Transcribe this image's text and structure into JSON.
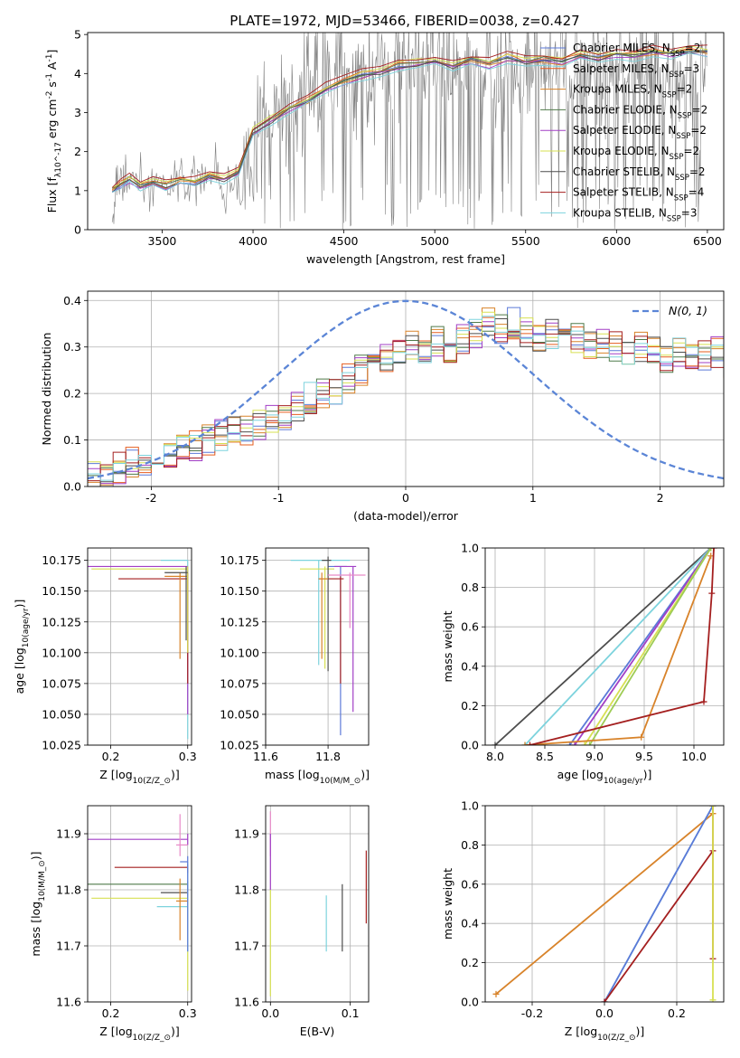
{
  "figure": {
    "title": "PLATE=1972, MJD=53466, FIBERID=0038, z=0.427"
  },
  "colors": {
    "chab_miles": "#5b79d8",
    "salp_miles": "#e65d1e",
    "krou_miles": "#d8832a",
    "chab_elodie": "#4f7a4a",
    "salp_elodie": "#a23fc6",
    "krou_elodie": "#d7e052",
    "chab_stelib": "#4d4d4d",
    "salp_stelib": "#a41f1f",
    "krou_stelib": "#7dd3dd",
    "obs": "#808080",
    "pink": "#e88ac8",
    "olive": "#9ecc55",
    "gauss": "#5b85d6"
  },
  "chart_data": [
    {
      "id": "spectrum",
      "type": "line",
      "xlabel": "wavelength [Angstrom, rest frame]",
      "ylabel": "Flux [f_λ 10^-17 erg cm^-2 s^-1 A^-1]",
      "xlim": [
        3090,
        6590
      ],
      "ylim": [
        0,
        5.05
      ],
      "xticks": [
        3500,
        4000,
        4500,
        5000,
        5500,
        6000,
        6500
      ],
      "yticks": [
        0,
        1,
        2,
        3,
        4,
        5
      ],
      "grid": false,
      "legend_position": "upper-right",
      "observed": {
        "wavelength": [
          3225,
          3250,
          3280,
          3310,
          3350,
          3400,
          3450,
          3500,
          3550,
          3600,
          3650,
          3700,
          3750,
          3800,
          3850,
          3900,
          3950,
          4000,
          4050,
          4100,
          4150,
          4200,
          4250,
          4300,
          4350,
          4400,
          4450,
          4500,
          4550,
          4600,
          4650,
          4700,
          4750,
          4800,
          4850,
          4900,
          4950,
          5000,
          5050,
          5100,
          5150,
          5200,
          5250,
          5300,
          5350,
          5400,
          5450,
          5500,
          5550,
          5600,
          5650,
          5700,
          5750,
          5800,
          5850,
          5900,
          5950,
          6000,
          6050,
          6100,
          6150,
          6200,
          6250,
          6300,
          6350,
          6400,
          6450,
          6500
        ],
        "flux": [
          0.0,
          1.1,
          1.25,
          1.2,
          1.35,
          1.2,
          1.15,
          1.3,
          1.05,
          1.4,
          0.9,
          1.5,
          1.0,
          1.6,
          0.7,
          1.5,
          0.6,
          2.4,
          2.9,
          2.6,
          3.4,
          3.1,
          3.3,
          3.7,
          3.4,
          3.9,
          3.6,
          4.2,
          3.8,
          4.1,
          3.9,
          4.4,
          4.0,
          4.6,
          3.7,
          4.5,
          4.1,
          4.3,
          3.9,
          4.2,
          3.8,
          4.4,
          3.9,
          4.1,
          3.7,
          4.3,
          3.6,
          4.2,
          3.9,
          4.4,
          3.8,
          4.5,
          3.6,
          4.3,
          3.9,
          4.4,
          3.7,
          4.6,
          3.8,
          4.3,
          3.9,
          4.5,
          3.7,
          4.2,
          3.8,
          4.4,
          3.9,
          4.3
        ]
      },
      "model_x": [
        3225,
        3270,
        3320,
        3380,
        3450,
        3520,
        3600,
        3680,
        3760,
        3840,
        3920,
        4000,
        4100,
        4200,
        4300,
        4400,
        4500,
        4600,
        4700,
        4800,
        4900,
        5000,
        5100,
        5200,
        5300,
        5400,
        5500,
        5600,
        5700,
        5800,
        5900,
        6000,
        6100,
        6200,
        6300,
        6400,
        6500
      ],
      "model_base": [
        1.0,
        1.15,
        1.3,
        1.15,
        1.2,
        1.1,
        1.25,
        1.2,
        1.35,
        1.3,
        1.5,
        2.5,
        2.8,
        3.1,
        3.3,
        3.6,
        3.8,
        3.95,
        4.05,
        4.2,
        4.25,
        4.3,
        4.2,
        4.35,
        4.25,
        4.4,
        4.3,
        4.35,
        4.3,
        4.45,
        4.4,
        4.5,
        4.45,
        4.55,
        4.5,
        4.6,
        4.55
      ],
      "series": [
        {
          "name": "Chabrier MILES, N_SSP=2",
          "color_key": "chab_miles",
          "offset": 0.0
        },
        {
          "name": "Salpeter MILES, N_SSP=3",
          "color_key": "salp_miles",
          "offset": 0.05
        },
        {
          "name": "Kroupa MILES, N_SSP=2",
          "color_key": "krou_miles",
          "offset": -0.03
        },
        {
          "name": "Chabrier ELODIE, N_SSP=2",
          "color_key": "chab_elodie",
          "offset": 0.02
        },
        {
          "name": "Salpeter ELODIE, N_SSP=2",
          "color_key": "salp_elodie",
          "offset": -0.06
        },
        {
          "name": "Kroupa ELODIE, N_SSP=2",
          "color_key": "krou_elodie",
          "offset": 0.08
        },
        {
          "name": "Chabrier STELIB, N_SSP=2",
          "color_key": "chab_stelib",
          "offset": -0.02
        },
        {
          "name": "Salpeter STELIB, N_SSP=4",
          "color_key": "salp_stelib",
          "offset": 0.12
        },
        {
          "name": "Kroupa STELIB, N_SSP=3",
          "color_key": "krou_stelib",
          "offset": -0.1
        }
      ]
    },
    {
      "id": "residuals",
      "type": "line",
      "xlabel": "(data-model)/error",
      "ylabel": "Normed distribution",
      "xlim": [
        -2.5,
        2.5
      ],
      "ylim": [
        0,
        0.42
      ],
      "xticks": [
        -2,
        -1,
        0,
        1,
        2
      ],
      "yticks": [
        0.0,
        0.1,
        0.2,
        0.3,
        0.4
      ],
      "grid": true,
      "legend_position": "upper-right",
      "gauss_label": "N(0, 1)",
      "hist_bin_width": 0.1,
      "hist_x0": -2.5,
      "hist_base": [
        0.02,
        0.03,
        0.04,
        0.05,
        0.05,
        0.06,
        0.07,
        0.08,
        0.09,
        0.1,
        0.11,
        0.12,
        0.12,
        0.13,
        0.14,
        0.15,
        0.17,
        0.19,
        0.2,
        0.21,
        0.23,
        0.25,
        0.26,
        0.28,
        0.29,
        0.3,
        0.29,
        0.31,
        0.3,
        0.32,
        0.33,
        0.35,
        0.34,
        0.35,
        0.33,
        0.32,
        0.33,
        0.31,
        0.32,
        0.3,
        0.31,
        0.3,
        0.29,
        0.3,
        0.29,
        0.28,
        0.29,
        0.27,
        0.28,
        0.29,
        0.26,
        0.25,
        0.25,
        0.23,
        0.22,
        0.21,
        0.2,
        0.18,
        0.18,
        0.16,
        0.15,
        0.14,
        0.13,
        0.12,
        0.12,
        0.11,
        0.1,
        0.09,
        0.08,
        0.07
      ],
      "hist_series": [
        {
          "color_key": "chab_miles",
          "seed": 1
        },
        {
          "color_key": "salp_miles",
          "seed": 2
        },
        {
          "color_key": "krou_miles",
          "seed": 3
        },
        {
          "color_key": "chab_elodie",
          "seed": 4
        },
        {
          "color_key": "salp_elodie",
          "seed": 5
        },
        {
          "color_key": "krou_elodie",
          "seed": 6
        },
        {
          "color_key": "chab_stelib",
          "seed": 7
        },
        {
          "color_key": "salp_stelib",
          "seed": 8
        },
        {
          "color_key": "krou_stelib",
          "seed": 9
        }
      ]
    },
    {
      "id": "age_vs_Z",
      "type": "scatter",
      "xlabel": "Z [log10(Z/Z⊙)]",
      "ylabel": "age  [log10(age/yr)]",
      "xlim": [
        0.17,
        0.305
      ],
      "ylim": [
        10.025,
        10.185
      ],
      "xticks": [
        0.2,
        0.3
      ],
      "yticks": [
        10.025,
        10.05,
        10.075,
        10.1,
        10.125,
        10.15,
        10.175
      ],
      "grid": true,
      "points": [
        {
          "color_key": "krou_stelib",
          "x": 0.3,
          "xlo": 0.265,
          "xhi": 0.3,
          "y": 10.175,
          "ylo": 10.03,
          "yhi": 10.175
        },
        {
          "color_key": "salp_elodie",
          "x": 0.3,
          "xlo": 0.17,
          "xhi": 0.3,
          "y": 10.17,
          "ylo": 10.05,
          "yhi": 10.17
        },
        {
          "color_key": "salp_stelib",
          "x": 0.3,
          "xlo": 0.21,
          "xhi": 0.3,
          "y": 10.16,
          "ylo": 10.075,
          "yhi": 10.165
        },
        {
          "color_key": "krou_miles",
          "x": 0.29,
          "xlo": 0.27,
          "xhi": 0.3,
          "y": 10.162,
          "ylo": 10.095,
          "yhi": 10.165
        },
        {
          "color_key": "krou_elodie",
          "x": 0.3,
          "xlo": 0.175,
          "xhi": 0.3,
          "y": 10.168,
          "ylo": 10.1,
          "yhi": 10.17
        },
        {
          "color_key": "chab_stelib",
          "x": 0.298,
          "xlo": 0.27,
          "xhi": 0.3,
          "y": 10.165,
          "ylo": 10.11,
          "yhi": 10.17
        }
      ]
    },
    {
      "id": "age_vs_mass",
      "type": "scatter",
      "xlabel": "mass [log10(M/M⊙)]",
      "ylabel": "",
      "xlim": [
        11.6,
        11.93
      ],
      "ylim": [
        10.025,
        10.185
      ],
      "xticks": [
        11.6,
        11.8
      ],
      "yticks": [
        10.025,
        10.05,
        10.075,
        10.1,
        10.125,
        10.15,
        10.175
      ],
      "grid": true,
      "points": [
        {
          "color_key": "krou_stelib",
          "x": 11.77,
          "xlo": 11.68,
          "xhi": 11.87,
          "y": 10.175,
          "ylo": 10.09,
          "yhi": 10.175
        },
        {
          "color_key": "chab_miles",
          "x": 11.84,
          "xlo": 11.8,
          "xhi": 11.86,
          "y": 10.17,
          "ylo": 10.033,
          "yhi": 10.17
        },
        {
          "color_key": "salp_elodie",
          "x": 11.88,
          "xlo": 11.82,
          "xhi": 11.89,
          "y": 10.17,
          "ylo": 10.052,
          "yhi": 10.17
        },
        {
          "color_key": "salp_stelib",
          "x": 11.84,
          "xlo": 11.77,
          "xhi": 11.85,
          "y": 10.16,
          "ylo": 10.075,
          "yhi": 10.162
        },
        {
          "color_key": "krou_elodie",
          "x": 11.79,
          "xlo": 11.71,
          "xhi": 11.82,
          "y": 10.168,
          "ylo": 10.087,
          "yhi": 10.17
        },
        {
          "color_key": "chab_stelib",
          "x": 11.8,
          "xlo": 11.78,
          "xhi": 11.81,
          "y": 10.175,
          "ylo": 10.085,
          "yhi": 10.178
        },
        {
          "color_key": "pink",
          "x": 11.87,
          "xlo": 11.8,
          "xhi": 11.92,
          "y": 10.163,
          "ylo": 10.12,
          "yhi": 10.165
        },
        {
          "color_key": "krou_miles",
          "x": 11.78,
          "xlo": 11.77,
          "xhi": 11.8,
          "y": 10.16,
          "ylo": 10.095,
          "yhi": 10.165
        }
      ]
    },
    {
      "id": "weight_vs_age",
      "type": "line",
      "xlabel": "age  [log10(age/yr)]",
      "ylabel": "mass weight",
      "xlim": [
        7.9,
        10.3
      ],
      "ylim": [
        0,
        1
      ],
      "xticks": [
        8.0,
        8.5,
        9.0,
        9.5,
        10.0
      ],
      "yticks": [
        0.0,
        0.2,
        0.4,
        0.6,
        0.8,
        1.0
      ],
      "grid": true,
      "series": [
        {
          "color_key": "chab_stelib",
          "x": [
            8.0,
            10.17
          ],
          "y": [
            0.0,
            1.0
          ]
        },
        {
          "color_key": "krou_stelib",
          "x": [
            8.3,
            10.17
          ],
          "y": [
            0.0,
            1.0
          ]
        },
        {
          "color_key": "chab_miles",
          "x": [
            8.75,
            10.17
          ],
          "y": [
            0.0,
            1.0
          ]
        },
        {
          "color_key": "salp_elodie",
          "x": [
            8.8,
            10.17
          ],
          "y": [
            0.0,
            1.0
          ]
        },
        {
          "color_key": "krou_elodie",
          "x": [
            8.9,
            10.17
          ],
          "y": [
            0.0,
            1.0
          ]
        },
        {
          "color_key": "olive",
          "x": [
            8.95,
            10.17
          ],
          "y": [
            0.0,
            1.0
          ]
        },
        {
          "color_key": "krou_miles",
          "x": [
            8.3,
            9.47,
            10.17
          ],
          "y": [
            0.0,
            0.04,
            0.96
          ]
        },
        {
          "color_key": "salp_stelib",
          "x": [
            8.35,
            10.1,
            10.18,
            10.2
          ],
          "y": [
            0.0,
            0.22,
            0.77,
            1.0
          ]
        }
      ]
    },
    {
      "id": "mass_vs_Z",
      "type": "scatter",
      "xlabel": "Z [log10(Z/Z⊙)]",
      "ylabel": "mass [log10(M/M⊙)]",
      "xlim": [
        0.17,
        0.305
      ],
      "ylim": [
        11.6,
        11.95
      ],
      "xticks": [
        0.2,
        0.3
      ],
      "yticks": [
        11.6,
        11.7,
        11.8,
        11.9
      ],
      "grid": true,
      "points": [
        {
          "color_key": "salp_elodie",
          "x": 0.3,
          "xlo": 0.17,
          "xhi": 0.3,
          "y": 11.89,
          "ylo": 11.88,
          "yhi": 11.9
        },
        {
          "color_key": "salp_stelib",
          "x": 0.3,
          "xlo": 0.205,
          "xhi": 0.3,
          "y": 11.84,
          "ylo": 11.83,
          "yhi": 11.845
        },
        {
          "color_key": "chab_elodie",
          "x": 0.3,
          "xlo": 0.17,
          "xhi": 0.3,
          "y": 11.81,
          "ylo": 11.8,
          "yhi": 11.815
        },
        {
          "color_key": "chab_stelib",
          "x": 0.3,
          "xlo": 0.265,
          "xhi": 0.3,
          "y": 11.795,
          "ylo": 11.79,
          "yhi": 11.8
        },
        {
          "color_key": "krou_elodie",
          "x": 0.3,
          "xlo": 0.175,
          "xhi": 0.3,
          "y": 11.785,
          "ylo": 11.62,
          "yhi": 11.8
        },
        {
          "color_key": "krou_stelib",
          "x": 0.3,
          "xlo": 0.26,
          "xhi": 0.3,
          "y": 11.77,
          "ylo": 11.69,
          "yhi": 11.85
        },
        {
          "color_key": "krou_miles",
          "x": 0.29,
          "xlo": 0.285,
          "xhi": 0.3,
          "y": 11.78,
          "ylo": 11.71,
          "yhi": 11.82
        },
        {
          "color_key": "pink",
          "x": 0.29,
          "xlo": 0.285,
          "xhi": 0.3,
          "y": 11.88,
          "ylo": 11.86,
          "yhi": 11.935
        },
        {
          "color_key": "chab_miles",
          "x": 0.3,
          "xlo": 0.29,
          "xhi": 0.3,
          "y": 11.85,
          "ylo": 11.69,
          "yhi": 11.86
        }
      ]
    },
    {
      "id": "mass_vs_ebv",
      "type": "scatter",
      "xlabel": "E(B-V)",
      "ylabel": "",
      "xlim": [
        -0.006,
        0.123
      ],
      "ylim": [
        11.6,
        11.95
      ],
      "xticks": [
        0.0,
        0.1
      ],
      "yticks": [
        11.6,
        11.7,
        11.8,
        11.9
      ],
      "grid": true,
      "points": [
        {
          "color_key": "pink",
          "x": 0.0,
          "y": 11.9,
          "ylo": 11.86,
          "yhi": 11.94
        },
        {
          "color_key": "salp_elodie",
          "x": 0.0,
          "y": 11.89,
          "ylo": 11.8,
          "yhi": 11.9
        },
        {
          "color_key": "krou_elodie",
          "x": 0.0,
          "y": 11.7,
          "ylo": 11.61,
          "yhi": 11.8
        },
        {
          "color_key": "krou_stelib",
          "x": 0.07,
          "y": 11.75,
          "ylo": 11.69,
          "yhi": 11.79
        },
        {
          "color_key": "chab_stelib",
          "x": 0.09,
          "y": 11.75,
          "ylo": 11.69,
          "yhi": 11.81
        },
        {
          "color_key": "salp_stelib",
          "x": 0.12,
          "y": 11.8,
          "ylo": 11.74,
          "yhi": 11.87
        }
      ]
    },
    {
      "id": "weight_vs_Z",
      "type": "line",
      "xlabel": "Z [log10(Z/Z⊙)]",
      "ylabel": "mass weight",
      "xlim": [
        -0.33,
        0.33
      ],
      "ylim": [
        0,
        1
      ],
      "xticks": [
        -0.2,
        0.0,
        0.2
      ],
      "yticks": [
        0.0,
        0.2,
        0.4,
        0.6,
        0.8,
        1.0
      ],
      "grid": true,
      "series": [
        {
          "color_key": "krou_miles",
          "x": [
            -0.3,
            0.3
          ],
          "y": [
            0.04,
            0.96
          ]
        },
        {
          "color_key": "krou_stelib",
          "x": [
            0.0,
            0.3
          ],
          "y": [
            0.0,
            1.0
          ]
        },
        {
          "color_key": "chab_miles",
          "x": [
            0.0,
            0.3
          ],
          "y": [
            0.0,
            1.0
          ]
        },
        {
          "color_key": "salp_stelib",
          "x": [
            0.0,
            0.3,
            0.3,
            0.3
          ],
          "y": [
            0.0,
            0.77,
            0.22,
            1.0
          ]
        },
        {
          "color_key": "krou_elodie",
          "x": [
            0.3,
            0.3
          ],
          "y": [
            0.01,
            1.0
          ]
        }
      ]
    }
  ]
}
